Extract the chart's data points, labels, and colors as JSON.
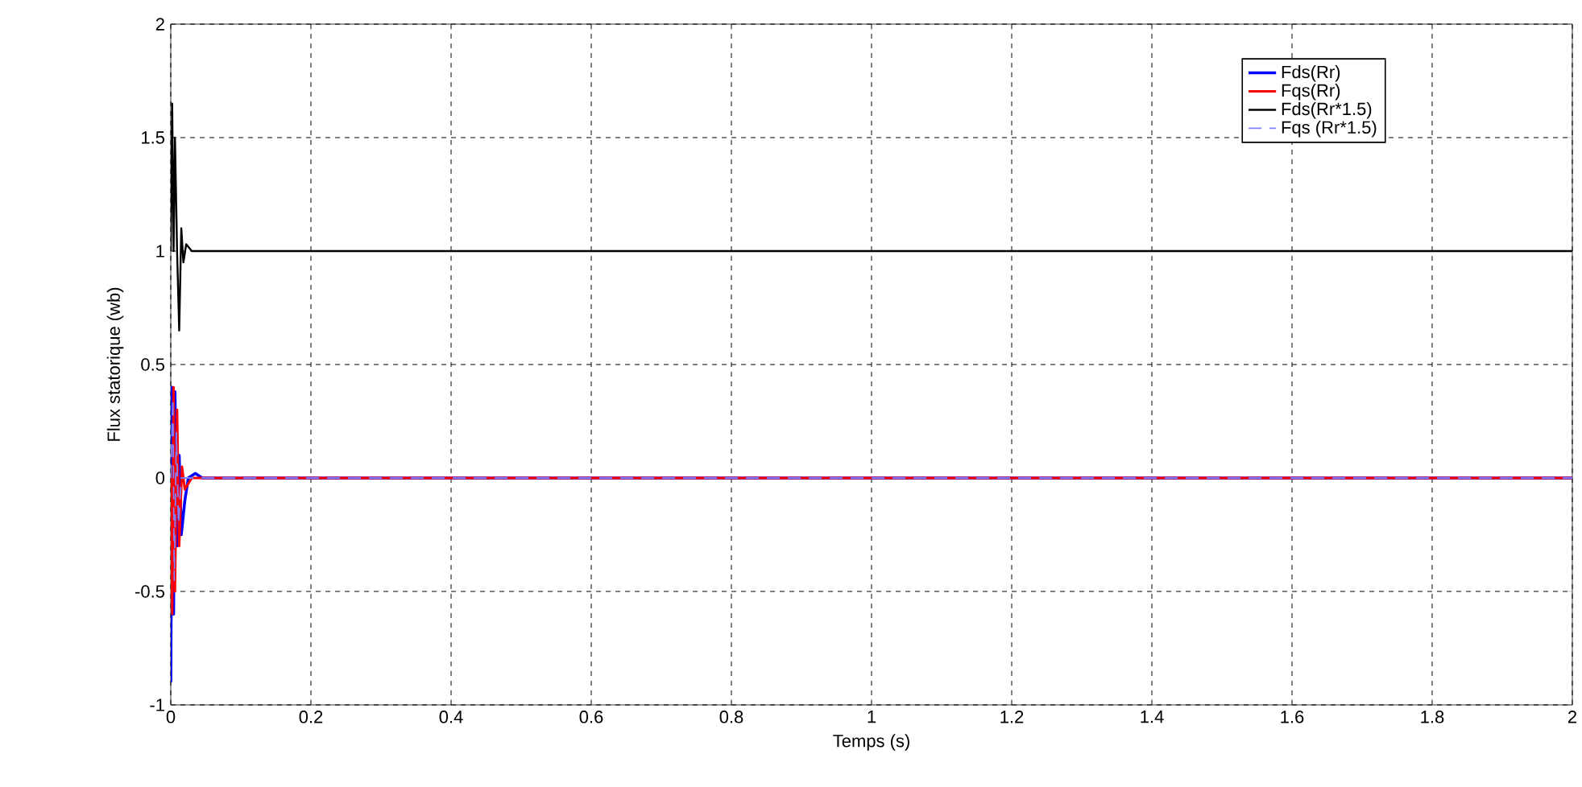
{
  "chart_data": {
    "type": "line",
    "xlabel": "Temps (s)",
    "ylabel": "Flux statorique (wb)",
    "xlim": [
      0,
      2
    ],
    "ylim": [
      -1,
      2
    ],
    "xticks": [
      0,
      0.2,
      0.4,
      0.6,
      0.8,
      1,
      1.2,
      1.4,
      1.6,
      1.8,
      2
    ],
    "yticks": [
      -1,
      -0.5,
      0,
      0.5,
      1,
      1.5,
      2
    ],
    "grid": true,
    "legend": "top right",
    "marker": "none",
    "series": [
      {
        "name": "Fds(Rr)",
        "color": "#0000ff",
        "line_style": "solid",
        "x": [
          0,
          0.002,
          0.004,
          0.006,
          0.009,
          0.012,
          0.015,
          0.02,
          0.025,
          0.035,
          0.045,
          2
        ],
        "values": [
          -0.9,
          0.4,
          -0.6,
          0.38,
          -0.3,
          0.1,
          -0.25,
          -0.1,
          0,
          0.02,
          0,
          0
        ]
      },
      {
        "name": "Fqs(Rr)",
        "color": "#ff0000",
        "line_style": "solid",
        "x": [
          0,
          0.002,
          0.004,
          0.006,
          0.009,
          0.012,
          0.016,
          0.02,
          0.03,
          2
        ],
        "values": [
          0,
          -0.6,
          0.4,
          -0.5,
          0.3,
          -0.3,
          0.05,
          -0.05,
          0,
          0
        ]
      },
      {
        "name": "Fds(Rr*1.5)",
        "color": "#000000",
        "line_style": "solid",
        "x": [
          0,
          0.002,
          0.004,
          0.006,
          0.009,
          0.012,
          0.015,
          0.018,
          0.022,
          0.03,
          2
        ],
        "values": [
          1,
          1.65,
          1,
          1.5,
          1,
          0.65,
          1.1,
          0.95,
          1.03,
          1,
          1
        ]
      },
      {
        "name": "Fqs (Rr*1.5)",
        "color": "#8080ff",
        "line_style": "dashed",
        "x": [
          0,
          0.003,
          0.005,
          0.008,
          0.011,
          0.015,
          2
        ],
        "values": [
          0,
          0.35,
          -0.45,
          0.2,
          -0.2,
          0,
          0
        ]
      }
    ]
  }
}
